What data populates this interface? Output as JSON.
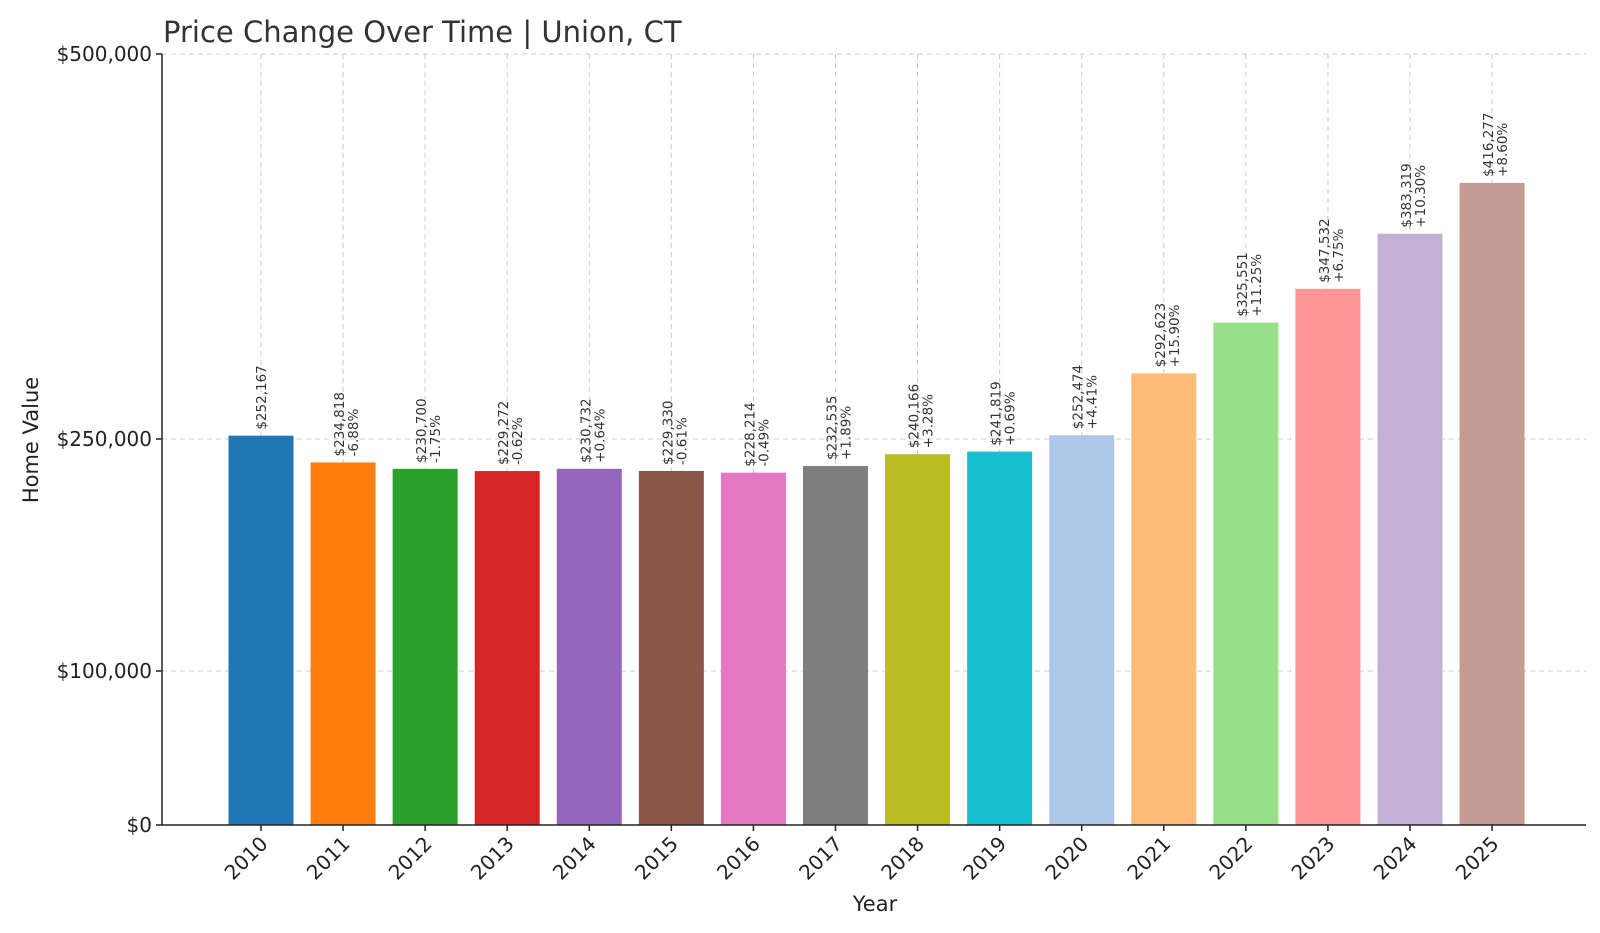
{
  "chart_data": {
    "type": "bar",
    "title": "Price Change Over Time | Union, CT",
    "xlabel": "Year",
    "ylabel": "Home Value",
    "ylim": [
      0,
      500000
    ],
    "yticks": [
      0,
      100000,
      250000,
      500000
    ],
    "ytick_labels": [
      "$0",
      "$100,000",
      "$250,000",
      "$500,000"
    ],
    "grid": true,
    "categories": [
      "2010",
      "2011",
      "2012",
      "2013",
      "2014",
      "2015",
      "2016",
      "2017",
      "2018",
      "2019",
      "2020",
      "2021",
      "2022",
      "2023",
      "2024",
      "2025"
    ],
    "values": [
      252167,
      234818,
      230700,
      229272,
      230732,
      229330,
      228214,
      232535,
      240166,
      241819,
      252474,
      292623,
      325551,
      347532,
      383319,
      416277
    ],
    "value_labels": [
      "$252,167",
      "$234,818",
      "$230,700",
      "$229,272",
      "$230,732",
      "$229,330",
      "$228,214",
      "$232,535",
      "$240,166",
      "$241,819",
      "$252,474",
      "$292,623",
      "$325,551",
      "$347,532",
      "$383,319",
      "$416,277"
    ],
    "change_labels": [
      "",
      "-6.88%",
      "-1.75%",
      "-0.62%",
      "+0.64%",
      "-0.61%",
      "-0.49%",
      "+1.89%",
      "+3.28%",
      "+0.69%",
      "+4.41%",
      "+15.90%",
      "+11.25%",
      "+6.75%",
      "+10.30%",
      "+8.60%"
    ],
    "colors": [
      "#1f77b4",
      "#ff7f0e",
      "#2ca02c",
      "#d62728",
      "#9467bd",
      "#8c564b",
      "#e377c2",
      "#7f7f7f",
      "#bcbd22",
      "#17becf",
      "#aec7e8",
      "#ffbb78",
      "#98df8a",
      "#ff9896",
      "#c5b0d5",
      "#c49c94"
    ]
  }
}
